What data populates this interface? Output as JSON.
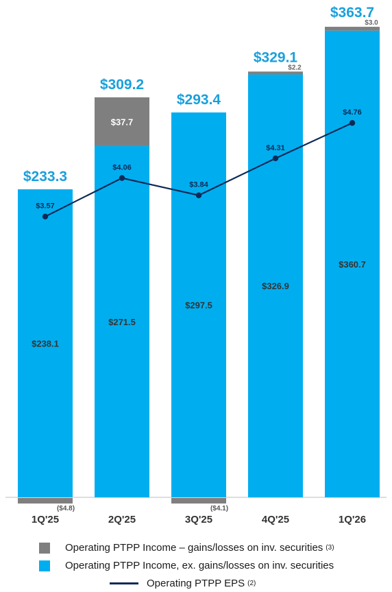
{
  "chart_data": {
    "type": "bar",
    "stacked": true,
    "categories": [
      "1Q'25",
      "2Q'25",
      "3Q'25",
      "4Q'25",
      "1Q'26"
    ],
    "series": [
      {
        "name": "Operating PTPP Income, ex. gains/losses on inv. securities",
        "color": "#00aeef",
        "values": [
          238.1,
          271.5,
          297.5,
          326.9,
          360.7
        ],
        "labels": [
          "$238.1",
          "$271.5",
          "$297.5",
          "$326.9",
          "$360.7"
        ]
      },
      {
        "name": "Operating PTPP Income – gains/losses on inv. securities",
        "color": "#7f7f7f",
        "values": [
          -4.8,
          37.7,
          -4.1,
          2.2,
          3.0
        ],
        "labels": [
          "($4.8)",
          "$37.7",
          "($4.1)",
          "$2.2",
          "$3.0"
        ]
      }
    ],
    "totals": [
      233.3,
      309.2,
      293.4,
      329.1,
      363.7
    ],
    "total_labels": [
      "$233.3",
      "$309.2",
      "$293.4",
      "$329.1",
      "$363.7"
    ],
    "line": {
      "name": "Operating PTPP EPS",
      "color": "#0d2a57",
      "values": [
        3.57,
        4.06,
        3.84,
        4.31,
        4.76
      ],
      "labels": [
        "$3.57",
        "$4.06",
        "$3.84",
        "$4.31",
        "$4.76"
      ]
    },
    "ylim": [
      -10,
      370
    ],
    "line_ylim": [
      0,
      5.8
    ],
    "grid": false,
    "legend_position": "bottom"
  },
  "legend": {
    "gains_label": "Operating PTPP Income – gains/losses on inv. securities",
    "gains_note": "(3)",
    "core_label": "Operating PTPP Income, ex. gains/losses on inv. securities",
    "eps_label": "Operating PTPP EPS",
    "eps_note": "(2)"
  }
}
